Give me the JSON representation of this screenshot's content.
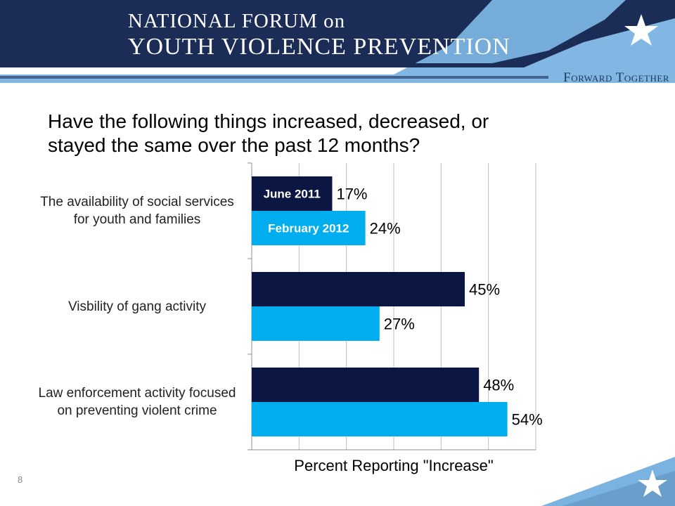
{
  "header": {
    "title_line1": "NATIONAL FORUM on",
    "title_line2": "YOUTH VIOLENCE PREVENTION",
    "tagline": "Forward Together"
  },
  "slide_number": "8",
  "colors": {
    "navy": "#0b1642",
    "cyan": "#00aeef",
    "banner": "#1b2d56",
    "light_blue": "#7ab3e0"
  },
  "icons": [
    "star-icon"
  ],
  "chart_data": {
    "type": "bar",
    "orientation": "horizontal",
    "title": "Have the following things increased, decreased, or stayed the same over the past 12 months?",
    "xlabel": "Percent Reporting \"Increase\"",
    "ylabel": "",
    "xlim": [
      0,
      60
    ],
    "grid": true,
    "legend": "inside-bars",
    "categories": [
      "The availability of social services for youth and families",
      "Visbility of gang activity",
      "Law enforcement activity focused on preventing violent crime"
    ],
    "series": [
      {
        "name": "June 2011",
        "color": "#0b1642",
        "values": [
          17,
          45,
          48
        ],
        "labels": [
          "17%",
          "45%",
          "48%"
        ]
      },
      {
        "name": "February 2012",
        "color": "#00aeef",
        "values": [
          24,
          27,
          54
        ],
        "labels": [
          "24%",
          "27%",
          "54%"
        ]
      }
    ]
  }
}
